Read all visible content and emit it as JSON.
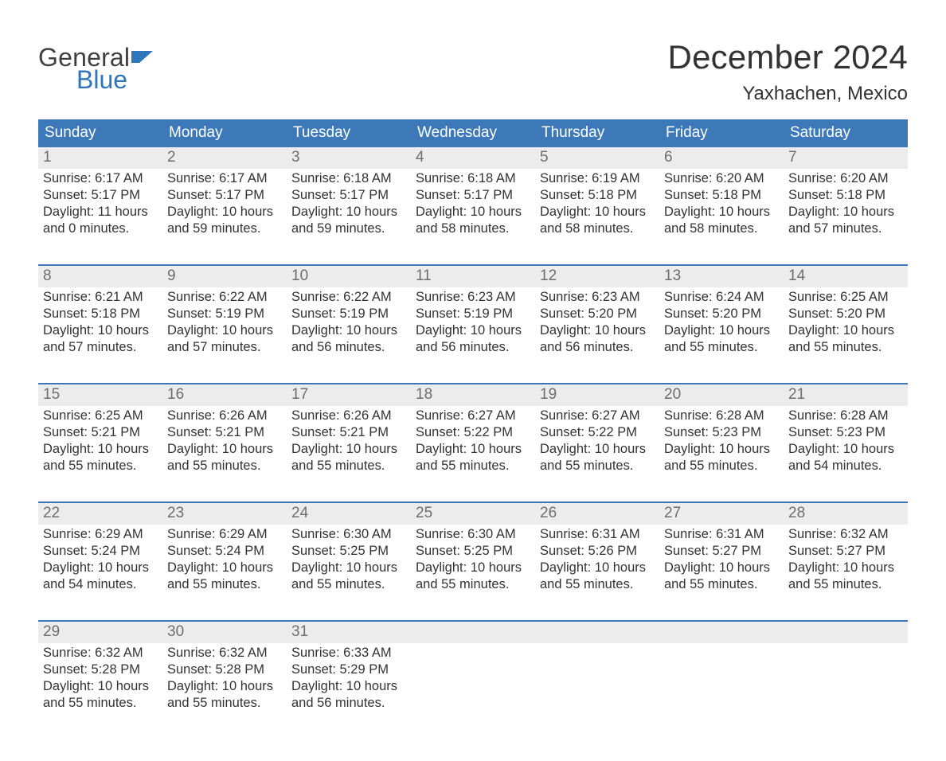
{
  "logo": {
    "top": "General",
    "bottom": "Blue",
    "flag_color": "#2f76bb",
    "text_dark": "#404040"
  },
  "title": "December 2024",
  "location": "Yaxhachen, Mexico",
  "colors": {
    "header_bg": "#3d79b8",
    "daynum_bg": "#ececec",
    "separator": "#3d79b8",
    "body_text": "#333333",
    "daynum_text": "#6e6e6e",
    "page_bg": "#ffffff"
  },
  "weekdays": [
    "Sunday",
    "Monday",
    "Tuesday",
    "Wednesday",
    "Thursday",
    "Friday",
    "Saturday"
  ],
  "weeks": [
    [
      {
        "n": "1",
        "sr": "6:17 AM",
        "ss": "5:17 PM",
        "dl": "11 hours and 0 minutes."
      },
      {
        "n": "2",
        "sr": "6:17 AM",
        "ss": "5:17 PM",
        "dl": "10 hours and 59 minutes."
      },
      {
        "n": "3",
        "sr": "6:18 AM",
        "ss": "5:17 PM",
        "dl": "10 hours and 59 minutes."
      },
      {
        "n": "4",
        "sr": "6:18 AM",
        "ss": "5:17 PM",
        "dl": "10 hours and 58 minutes."
      },
      {
        "n": "5",
        "sr": "6:19 AM",
        "ss": "5:18 PM",
        "dl": "10 hours and 58 minutes."
      },
      {
        "n": "6",
        "sr": "6:20 AM",
        "ss": "5:18 PM",
        "dl": "10 hours and 58 minutes."
      },
      {
        "n": "7",
        "sr": "6:20 AM",
        "ss": "5:18 PM",
        "dl": "10 hours and 57 minutes."
      }
    ],
    [
      {
        "n": "8",
        "sr": "6:21 AM",
        "ss": "5:18 PM",
        "dl": "10 hours and 57 minutes."
      },
      {
        "n": "9",
        "sr": "6:22 AM",
        "ss": "5:19 PM",
        "dl": "10 hours and 57 minutes."
      },
      {
        "n": "10",
        "sr": "6:22 AM",
        "ss": "5:19 PM",
        "dl": "10 hours and 56 minutes."
      },
      {
        "n": "11",
        "sr": "6:23 AM",
        "ss": "5:19 PM",
        "dl": "10 hours and 56 minutes."
      },
      {
        "n": "12",
        "sr": "6:23 AM",
        "ss": "5:20 PM",
        "dl": "10 hours and 56 minutes."
      },
      {
        "n": "13",
        "sr": "6:24 AM",
        "ss": "5:20 PM",
        "dl": "10 hours and 55 minutes."
      },
      {
        "n": "14",
        "sr": "6:25 AM",
        "ss": "5:20 PM",
        "dl": "10 hours and 55 minutes."
      }
    ],
    [
      {
        "n": "15",
        "sr": "6:25 AM",
        "ss": "5:21 PM",
        "dl": "10 hours and 55 minutes."
      },
      {
        "n": "16",
        "sr": "6:26 AM",
        "ss": "5:21 PM",
        "dl": "10 hours and 55 minutes."
      },
      {
        "n": "17",
        "sr": "6:26 AM",
        "ss": "5:21 PM",
        "dl": "10 hours and 55 minutes."
      },
      {
        "n": "18",
        "sr": "6:27 AM",
        "ss": "5:22 PM",
        "dl": "10 hours and 55 minutes."
      },
      {
        "n": "19",
        "sr": "6:27 AM",
        "ss": "5:22 PM",
        "dl": "10 hours and 55 minutes."
      },
      {
        "n": "20",
        "sr": "6:28 AM",
        "ss": "5:23 PM",
        "dl": "10 hours and 55 minutes."
      },
      {
        "n": "21",
        "sr": "6:28 AM",
        "ss": "5:23 PM",
        "dl": "10 hours and 54 minutes."
      }
    ],
    [
      {
        "n": "22",
        "sr": "6:29 AM",
        "ss": "5:24 PM",
        "dl": "10 hours and 54 minutes."
      },
      {
        "n": "23",
        "sr": "6:29 AM",
        "ss": "5:24 PM",
        "dl": "10 hours and 55 minutes."
      },
      {
        "n": "24",
        "sr": "6:30 AM",
        "ss": "5:25 PM",
        "dl": "10 hours and 55 minutes."
      },
      {
        "n": "25",
        "sr": "6:30 AM",
        "ss": "5:25 PM",
        "dl": "10 hours and 55 minutes."
      },
      {
        "n": "26",
        "sr": "6:31 AM",
        "ss": "5:26 PM",
        "dl": "10 hours and 55 minutes."
      },
      {
        "n": "27",
        "sr": "6:31 AM",
        "ss": "5:27 PM",
        "dl": "10 hours and 55 minutes."
      },
      {
        "n": "28",
        "sr": "6:32 AM",
        "ss": "5:27 PM",
        "dl": "10 hours and 55 minutes."
      }
    ],
    [
      {
        "n": "29",
        "sr": "6:32 AM",
        "ss": "5:28 PM",
        "dl": "10 hours and 55 minutes."
      },
      {
        "n": "30",
        "sr": "6:32 AM",
        "ss": "5:28 PM",
        "dl": "10 hours and 55 minutes."
      },
      {
        "n": "31",
        "sr": "6:33 AM",
        "ss": "5:29 PM",
        "dl": "10 hours and 56 minutes."
      },
      null,
      null,
      null,
      null
    ]
  ],
  "labels": {
    "sunrise": "Sunrise: ",
    "sunset": "Sunset: ",
    "daylight": "Daylight: "
  }
}
